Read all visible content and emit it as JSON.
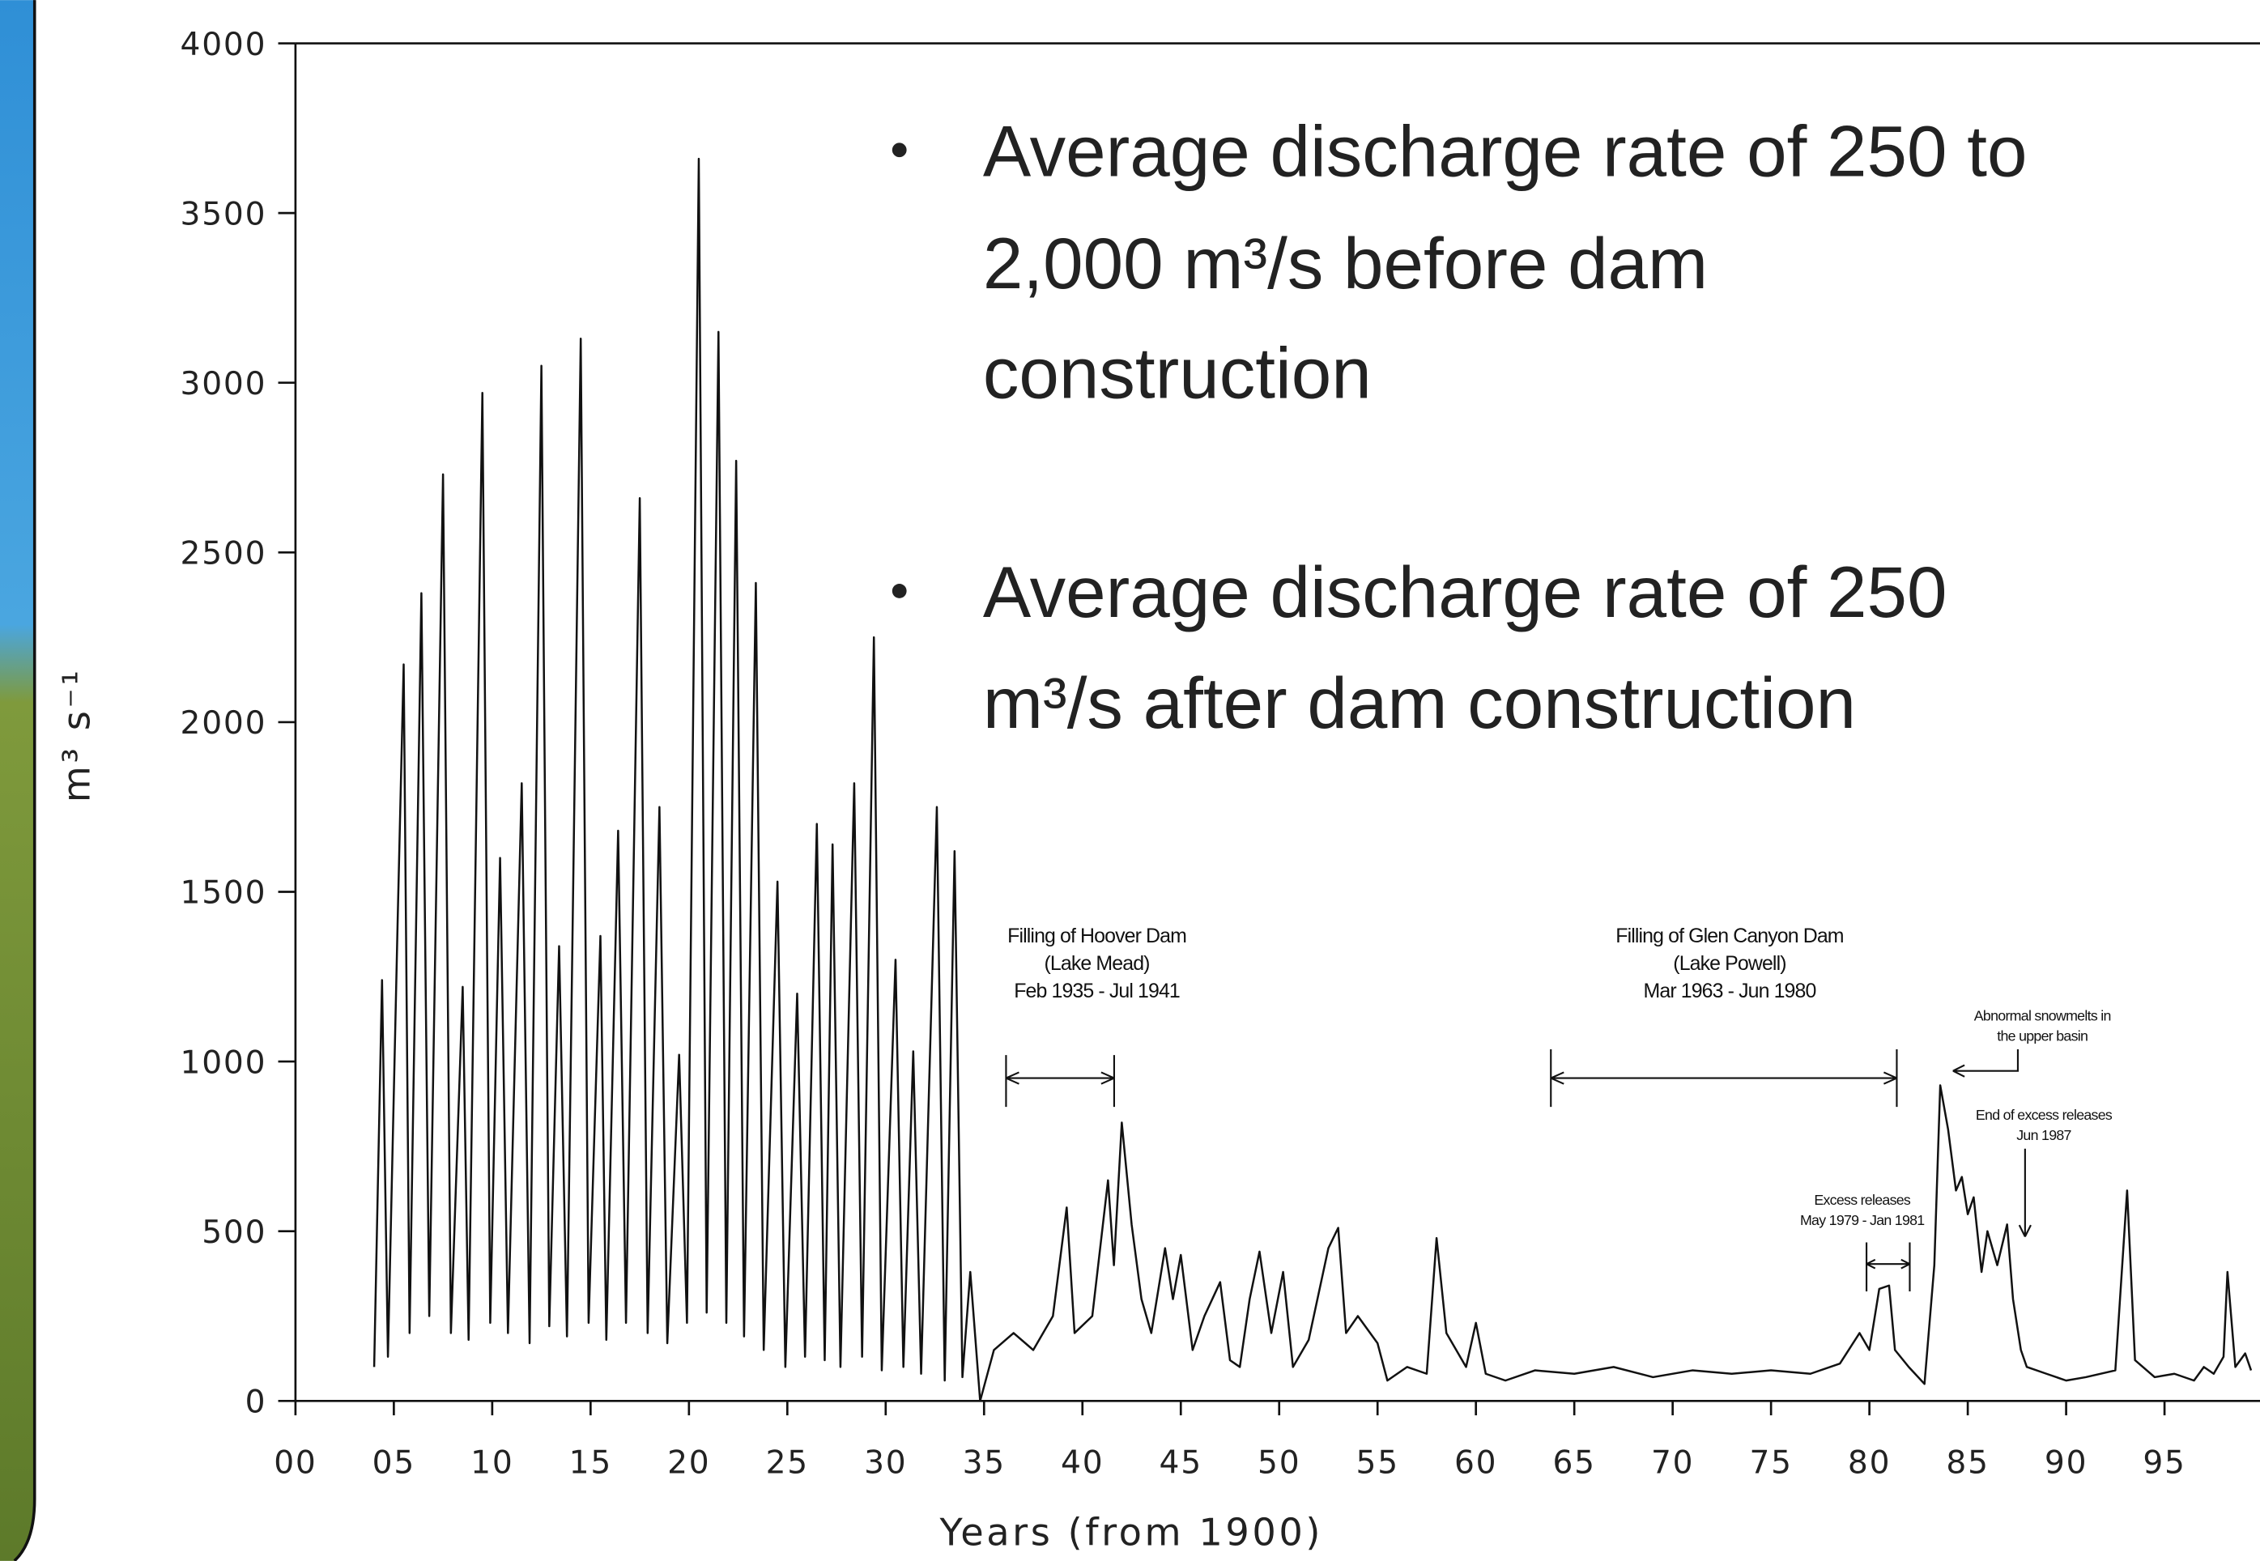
{
  "chart_data": {
    "type": "line",
    "x_label": "Years (from 1900)",
    "y_label": "m³ s⁻¹",
    "xlim": [
      0,
      100
    ],
    "ylim": [
      0,
      4000
    ],
    "xticks": [
      {
        "value": 0,
        "label": "00"
      },
      {
        "value": 5,
        "label": "05"
      },
      10,
      15,
      20,
      25,
      30,
      35,
      40,
      45,
      50,
      55,
      60,
      65,
      70,
      75,
      80,
      85,
      90,
      95
    ],
    "yticks": [
      0,
      500,
      1000,
      1500,
      2000,
      2500,
      3000,
      3500,
      4000
    ],
    "color": "#111111",
    "x": [
      4.0,
      4.4,
      4.7,
      5.2,
      5.5,
      5.8,
      6.4,
      6.8,
      7.5,
      7.9,
      8.5,
      8.8,
      9.5,
      9.9,
      10.4,
      10.8,
      11.5,
      11.9,
      12.5,
      12.9,
      13.4,
      13.8,
      14.5,
      14.9,
      15.5,
      15.8,
      16.4,
      16.8,
      17.5,
      17.9,
      18.5,
      18.9,
      19.5,
      19.9,
      20.5,
      20.9,
      21.5,
      21.9,
      22.4,
      22.8,
      23.4,
      23.8,
      24.5,
      24.9,
      25.5,
      25.9,
      26.5,
      26.9,
      27.3,
      27.7,
      28.4,
      28.8,
      29.4,
      29.8,
      30.5,
      30.9,
      31.4,
      31.8,
      32.6,
      33.0,
      33.5,
      33.9,
      34.3,
      34.8,
      35.5,
      36.5,
      37.5,
      38.5,
      39.2,
      39.6,
      40.5,
      41.3,
      41.6,
      42.0,
      42.5,
      43.0,
      43.5,
      44.2,
      44.6,
      45.0,
      45.6,
      46.2,
      47.0,
      47.5,
      48.0,
      48.5,
      49.0,
      49.6,
      50.2,
      50.7,
      51.5,
      52.5,
      53.0,
      53.4,
      54.0,
      55.0,
      55.5,
      56.5,
      57.5,
      58.0,
      58.5,
      59.5,
      60.0,
      60.5,
      61.5,
      63.0,
      65.0,
      67.0,
      69.0,
      71.0,
      73.0,
      75.0,
      77.0,
      78.5,
      79.5,
      80.0,
      80.5,
      81.0,
      81.3,
      82.0,
      82.8,
      83.3,
      83.6,
      84.0,
      84.4,
      84.7,
      85.0,
      85.3,
      85.7,
      86.0,
      86.5,
      87.0,
      87.3,
      87.7,
      88.0,
      89.0,
      90.0,
      91.0,
      92.5,
      93.1,
      93.5,
      94.5,
      95.5,
      96.5,
      97.0,
      97.5,
      98.0,
      98.2,
      98.6,
      99.1,
      99.4
    ],
    "values": [
      100,
      1240,
      130,
      1430,
      2170,
      200,
      2380,
      250,
      2730,
      200,
      1220,
      180,
      2970,
      230,
      1600,
      200,
      1820,
      170,
      3050,
      220,
      1340,
      190,
      3130,
      230,
      1370,
      180,
      1680,
      230,
      2660,
      200,
      1750,
      170,
      1020,
      230,
      3660,
      260,
      3150,
      230,
      2770,
      190,
      2410,
      150,
      1530,
      100,
      1200,
      130,
      1700,
      120,
      1640,
      100,
      1820,
      130,
      2250,
      90,
      1300,
      100,
      1030,
      80,
      1750,
      60,
      1620,
      70,
      380,
      0,
      150,
      200,
      150,
      250,
      570,
      200,
      250,
      650,
      400,
      820,
      520,
      300,
      200,
      450,
      300,
      430,
      150,
      250,
      350,
      120,
      100,
      300,
      440,
      200,
      380,
      100,
      180,
      450,
      510,
      200,
      250,
      170,
      60,
      100,
      80,
      480,
      200,
      100,
      230,
      80,
      60,
      90,
      80,
      100,
      70,
      90,
      80,
      90,
      80,
      110,
      200,
      150,
      330,
      340,
      150,
      100,
      50,
      400,
      930,
      800,
      620,
      660,
      550,
      600,
      380,
      500,
      400,
      520,
      300,
      150,
      100,
      80,
      60,
      70,
      90,
      620,
      120,
      70,
      80,
      60,
      100,
      80,
      130,
      380,
      100,
      140,
      90
    ],
    "annotations": [
      [
        "Filling of Hoover Dam",
        "(Lake Mead)",
        "Feb 1935 - Jul 1941"
      ],
      [
        "Filling of Glen Canyon Dam",
        "(Lake Powell)",
        "Mar 1963 - Jun 1980"
      ],
      [
        "Abnormal snowmelts in",
        "the upper basin"
      ],
      [
        "End of excess releases",
        "Jun 1987"
      ],
      [
        "Excess releases",
        "May 1979 - Jan 1981"
      ]
    ],
    "bullets": [
      [
        "Average discharge rate of 250 to",
        "2,000 m³/s before dam",
        "construction"
      ],
      [
        "Average discharge rate of 250",
        "m³/s after dam construction"
      ]
    ]
  }
}
